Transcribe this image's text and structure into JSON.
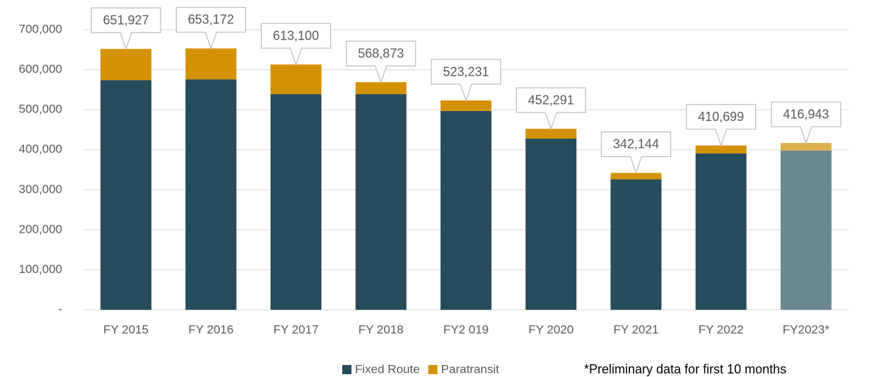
{
  "chart_data": {
    "type": "stacked_bar",
    "categories": [
      "FY 2015",
      "FY 2016",
      "FY 2017",
      "FY 2018",
      "FY2 019",
      "FY 2020",
      "FY 2021",
      "FY 2022",
      "FY2023*"
    ],
    "series": [
      {
        "name": "Fixed Route",
        "color": "#264b5b",
        "colors": [
          "#264b5b",
          "#264b5b",
          "#264b5b",
          "#264b5b",
          "#264b5b",
          "#264b5b",
          "#264b5b",
          "#264b5b",
          "#6b8790"
        ],
        "values": [
          574000,
          576000,
          539000,
          539000,
          497000,
          428000,
          326000,
          391000,
          398000
        ]
      },
      {
        "name": "Paratransit",
        "color": "#d49100",
        "colors": [
          "#d49100",
          "#d49100",
          "#d49100",
          "#d49100",
          "#d49100",
          "#d49100",
          "#d49100",
          "#d49100",
          "#ddb04f"
        ],
        "values": [
          77927,
          77172,
          74100,
          29873,
          26231,
          24291,
          16144,
          19699,
          18943
        ]
      }
    ],
    "totals": [
      651927,
      653172,
      613100,
      568873,
      523231,
      452291,
      342144,
      410699,
      416943
    ],
    "total_labels": [
      "651,927",
      "653,172",
      "613,100",
      "568,873",
      "523,231",
      "452,291",
      "342,144",
      "410,699",
      "416,943"
    ],
    "ylim": [
      0,
      700000
    ],
    "yticks": [
      {
        "value": 0,
        "label": "-"
      },
      {
        "value": 100000,
        "label": "100,000"
      },
      {
        "value": 200000,
        "label": "200,000"
      },
      {
        "value": 300000,
        "label": "300,000"
      },
      {
        "value": 400000,
        "label": "400,000"
      },
      {
        "value": 500000,
        "label": "500,000"
      },
      {
        "value": 600000,
        "label": "600,000"
      },
      {
        "value": 700000,
        "label": "700,000"
      }
    ],
    "grid": true,
    "legend_position": "bottom",
    "note": "*Preliminary data for first 10 months"
  }
}
